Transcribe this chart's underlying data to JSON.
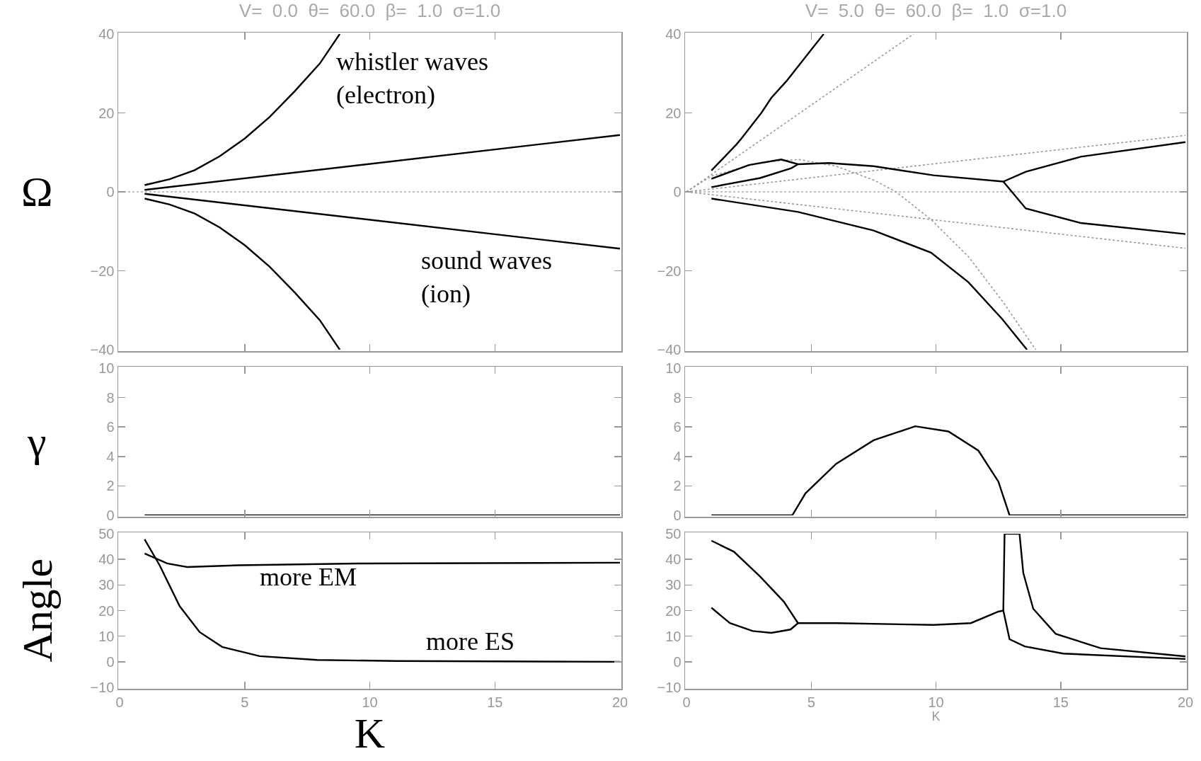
{
  "chart_data": [
    {
      "type": "line",
      "title": "V=  0.0  θ=  60.0  β=  1.0  σ=1.0",
      "ylabel": "Ω",
      "xlim": [
        0,
        20
      ],
      "xticks": [
        0,
        5,
        10,
        15,
        20
      ],
      "ylim": [
        -40,
        40
      ],
      "yticks": [
        -40,
        -20,
        0,
        20,
        40
      ],
      "tick_labels": "y",
      "ref_lines": [
        {
          "axis": "y",
          "value": 0,
          "color": "#aaaaaa",
          "line_style": "dotted"
        }
      ],
      "annotations": [
        "whistler waves\n(electron)",
        "sound waves\n(ion)"
      ],
      "series": [
        {
          "color": "#000000",
          "x": [
            1,
            2,
            3,
            4,
            5,
            6,
            7,
            8,
            8.8
          ],
          "values": [
            1.7,
            3.2,
            5.5,
            9,
            13.5,
            19,
            25.5,
            32.5,
            40
          ]
        },
        {
          "color": "#000000",
          "x": [
            1,
            20
          ],
          "values": [
            0.5,
            14.4
          ]
        },
        {
          "color": "#000000",
          "x": [
            1,
            20
          ],
          "values": [
            -0.5,
            -14.4
          ]
        },
        {
          "color": "#000000",
          "x": [
            1,
            2,
            3,
            4,
            5,
            6,
            7,
            8,
            8.8
          ],
          "values": [
            -1.7,
            -3.2,
            -5.5,
            -9,
            -13.5,
            -19,
            -25.5,
            -32.5,
            -40
          ]
        }
      ]
    },
    {
      "type": "line",
      "title": "V=  5.0  θ=  60.0  β=  1.0  σ=1.0",
      "xlim": [
        0,
        20
      ],
      "xticks": [
        0,
        5,
        10,
        15,
        20
      ],
      "ylim": [
        -40,
        40
      ],
      "yticks": [
        -40,
        -20,
        0,
        20,
        40
      ],
      "tick_labels": "y",
      "ref_lines": [
        {
          "axis": "y",
          "value": 0,
          "color": "#aaaaaa",
          "line_style": "dotted"
        }
      ],
      "series": [
        {
          "color": "#999999",
          "line_style": "dotted",
          "x": [
            0,
            9.1
          ],
          "values": [
            0,
            40
          ]
        },
        {
          "color": "#999999",
          "line_style": "dotted",
          "x": [
            0,
            20
          ],
          "values": [
            0,
            14.3
          ]
        },
        {
          "color": "#999999",
          "line_style": "dotted",
          "x": [
            0,
            20
          ],
          "values": [
            0,
            -14.3
          ]
        },
        {
          "color": "#999999",
          "line_style": "dotted",
          "x": [
            0,
            1,
            3,
            4.5,
            6,
            7.5,
            8.4,
            9.8,
            11.3,
            12.7,
            14
          ],
          "values": [
            0,
            4,
            7.5,
            8.2,
            6.5,
            3,
            0,
            -7,
            -16.4,
            -28,
            -40
          ]
        },
        {
          "color": "#000000",
          "x": [
            1,
            2,
            2.2,
            3,
            3.4,
            4,
            5,
            5.5
          ],
          "values": [
            5.4,
            12,
            13.5,
            20,
            23.8,
            28,
            36,
            40
          ]
        },
        {
          "color": "#000000",
          "x": [
            1,
            2.5,
            3.8,
            4.47,
            5.7,
            7.5,
            9.9,
            12.7,
            13.6,
            15.8,
            20
          ],
          "values": [
            3.3,
            6.8,
            8.2,
            7,
            7.3,
            6.5,
            4.2,
            2.6,
            5.1,
            8.9,
            12.6
          ]
        },
        {
          "color": "#000000",
          "x": [
            1,
            2.95,
            4.2,
            4.47
          ],
          "values": [
            1.2,
            3.5,
            6,
            7
          ]
        },
        {
          "color": "#000000",
          "x": [
            12.7,
            13.6,
            15.8,
            20
          ],
          "values": [
            2.6,
            -4.2,
            -7.9,
            -10.7
          ]
        },
        {
          "color": "#000000",
          "x": [
            1,
            4.47,
            7.5,
            9.8,
            11.3,
            12.65,
            13.65
          ],
          "values": [
            -1.7,
            -5.1,
            -9.8,
            -15.4,
            -22.9,
            -32.2,
            -40
          ]
        }
      ]
    },
    {
      "type": "line",
      "ylabel": "γ",
      "xlim": [
        0,
        20
      ],
      "xticks": [
        0,
        5,
        10,
        15,
        20
      ],
      "ylim": [
        0,
        10
      ],
      "yticks": [
        0,
        2,
        4,
        6,
        8,
        10
      ],
      "tick_labels": "y",
      "series": [
        {
          "color": "#000000",
          "x": [
            1,
            20
          ],
          "values": [
            0,
            0
          ]
        }
      ]
    },
    {
      "type": "line",
      "xlim": [
        0,
        20
      ],
      "xticks": [
        0,
        5,
        10,
        15,
        20
      ],
      "ylim": [
        0,
        10
      ],
      "yticks": [
        0,
        2,
        4,
        6,
        8,
        10
      ],
      "tick_labels": "y",
      "series": [
        {
          "color": "#000000",
          "x": [
            1,
            4.24,
            4.77,
            6,
            7.5,
            9.17,
            10.5,
            11.7,
            12.5,
            12.95,
            20
          ],
          "values": [
            0,
            0,
            1.5,
            3.5,
            5.1,
            6.05,
            5.7,
            4.4,
            2.3,
            0,
            0
          ]
        }
      ]
    },
    {
      "type": "line",
      "ylabel": "Angle",
      "xlabel": "K",
      "xlim": [
        0,
        20
      ],
      "xticks": [
        0,
        5,
        10,
        15,
        20
      ],
      "ylim": [
        -10,
        50
      ],
      "yticks": [
        -10,
        0,
        10,
        20,
        30,
        40,
        50
      ],
      "annotations": [
        "more EM",
        "more ES"
      ],
      "series": [
        {
          "color": "#000000",
          "x": [
            1,
            1.6,
            2.4,
            3.2,
            4.1,
            5.6,
            7.9,
            11.1,
            20
          ],
          "values": [
            47.8,
            37.7,
            21.7,
            11.6,
            5.8,
            2.2,
            0.7,
            0.3,
            0
          ]
        },
        {
          "color": "#000000",
          "x": [
            1,
            1.9,
            2.7,
            4.76,
            9.5,
            20
          ],
          "values": [
            42.3,
            38.4,
            37,
            37.7,
            38.4,
            38.7
          ]
        }
      ]
    },
    {
      "type": "line",
      "xlabel": "K",
      "xlim": [
        0,
        20
      ],
      "xticks": [
        0,
        5,
        10,
        15,
        20
      ],
      "ylim": [
        -10,
        50
      ],
      "yticks": [
        -10,
        0,
        10,
        20,
        30,
        40,
        50
      ],
      "series": [
        {
          "color": "#000000",
          "x": [
            1,
            1.9,
            2.95,
            3.9,
            4.47,
            6,
            9.9,
            11.4,
            12.5,
            12.7,
            12.95,
            13.56,
            15.1,
            20
          ],
          "values": [
            47.3,
            43,
            33.3,
            23.5,
            15.1,
            15.1,
            14.4,
            15.1,
            19.6,
            20,
            8.8,
            6,
            3.2,
            1.1
          ]
        },
        {
          "color": "#000000",
          "x": [
            1,
            1.74,
            2.65,
            3.4,
            4.17,
            4.47
          ],
          "values": [
            21.1,
            15.1,
            12,
            11.3,
            12.6,
            15.1
          ]
        },
        {
          "color": "#000000",
          "x": [
            12.7,
            12.75,
            13.35,
            13.5,
            13.9,
            14.8,
            16.6,
            20
          ],
          "values": [
            20,
            50,
            50,
            34.7,
            20.7,
            10.9,
            5.3,
            2.1
          ]
        }
      ]
    }
  ]
}
